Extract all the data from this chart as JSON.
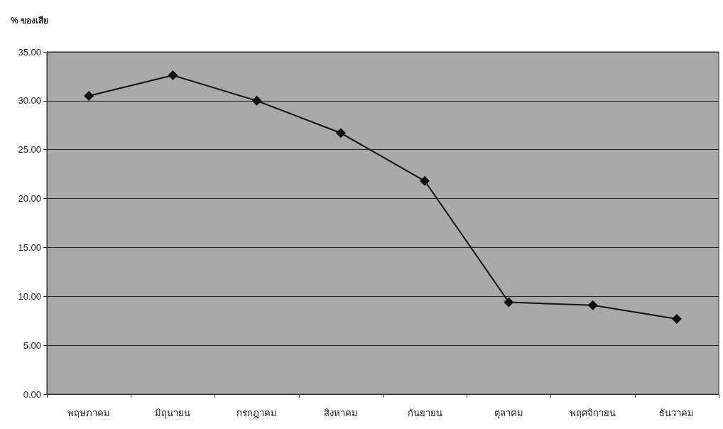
{
  "chart_data": {
    "type": "line",
    "ylabel": "% ของเสีย",
    "categories": [
      "พฤษภาคม",
      "มิถุนายน",
      "กรกฎาคม",
      "สิงหาคม",
      "กันยายน",
      "ตุลาคม",
      "พฤศจิกายน",
      "ธันวาคม"
    ],
    "series": [
      {
        "color": "#111111",
        "values": [
          30.5,
          32.6,
          30.0,
          26.7,
          21.8,
          9.4,
          9.1,
          7.7
        ]
      }
    ],
    "ylim": [
      0,
      35
    ],
    "yticks": [
      {
        "value": 0,
        "label": "0.00"
      },
      {
        "value": 5,
        "label": "5.00"
      },
      {
        "value": 10,
        "label": "10.00"
      },
      {
        "value": 15,
        "label": "15.00"
      },
      {
        "value": 20,
        "label": "20.00"
      },
      {
        "value": 25,
        "label": "25.00"
      },
      {
        "value": 30,
        "label": "30.00"
      },
      {
        "value": 35,
        "label": "35.00"
      }
    ],
    "grid": "y",
    "marker": "diamond",
    "line_style": "solid"
  }
}
